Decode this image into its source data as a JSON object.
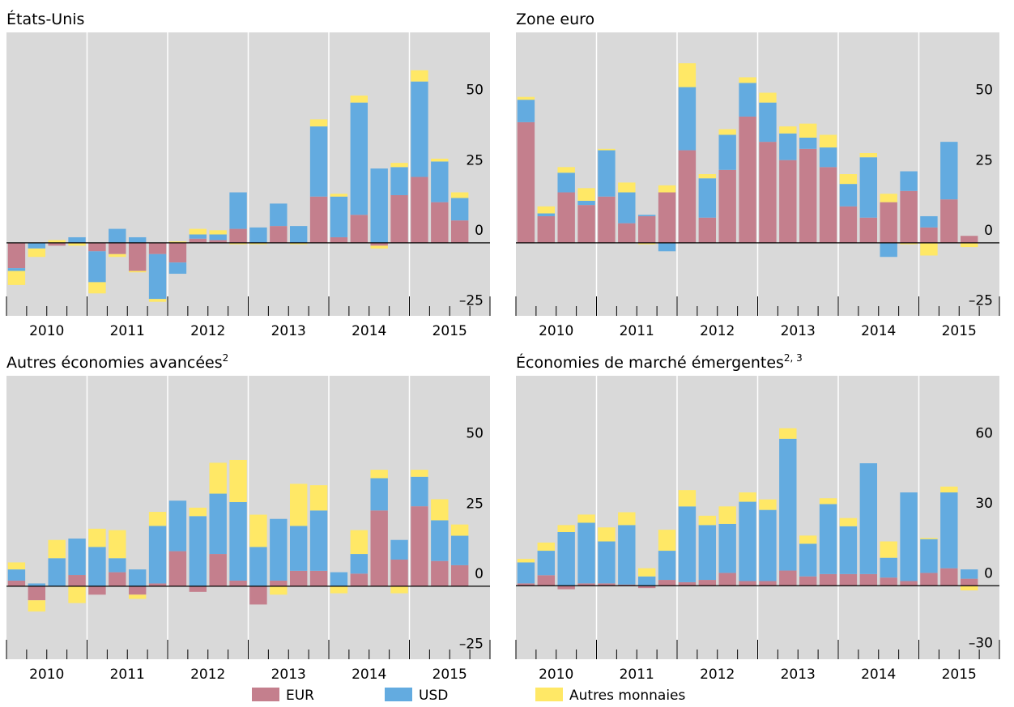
{
  "chart_data": [
    {
      "type": "stacked_bar",
      "title": "États-Unis",
      "ylim": [
        -26,
        75
      ],
      "yticks": [
        {
          "value": -25,
          "label": "–25"
        },
        0,
        25,
        50
      ],
      "year_labels": [
        "2010",
        "2011",
        "2012",
        "2013",
        "2014",
        "2015"
      ],
      "quarters_per_year": 4,
      "series": [
        {
          "name": "EUR",
          "color": "#c47f8d",
          "values": [
            -9,
            0,
            -1,
            0,
            -3,
            -4,
            -10,
            -4,
            -7,
            1.5,
            1,
            5,
            0,
            6,
            0,
            16.5,
            2,
            10,
            -1,
            17,
            23.5,
            14.5,
            8
          ]
        },
        {
          "name": "USD",
          "color": "#63abe0",
          "values": [
            -1,
            -2,
            0,
            2,
            -11,
            5,
            2,
            -16,
            -4,
            1.5,
            2,
            13,
            5.5,
            8,
            6,
            25,
            14.5,
            40,
            26.5,
            10,
            34,
            14.5,
            8
          ]
        },
        {
          "name": "Autres monnaies",
          "color": "#ffe866",
          "values": [
            -5,
            -3,
            1,
            -1,
            -4,
            -1,
            -0.5,
            -1,
            0.5,
            2,
            1.5,
            -0.5,
            -0.5,
            0,
            -0.5,
            2.5,
            1,
            2.5,
            -1,
            1.5,
            4,
            1,
            2
          ]
        }
      ]
    },
    {
      "type": "stacked_bar",
      "title": "Zone euro",
      "ylim": [
        -26,
        75
      ],
      "yticks": [
        {
          "value": -25,
          "label": "–25"
        },
        0,
        25,
        50
      ],
      "year_labels": [
        "2010",
        "2011",
        "2012",
        "2013",
        "2014",
        "2015"
      ],
      "quarters_per_year": 4,
      "series": [
        {
          "name": "EUR",
          "color": "#c47f8d",
          "values": [
            43,
            9.5,
            18,
            13.5,
            16.5,
            7,
            9.5,
            18,
            33,
            9,
            26,
            45,
            36,
            29.5,
            33.5,
            27,
            13,
            9,
            14.5,
            18.5,
            5.5,
            15.5,
            2.5
          ]
        },
        {
          "name": "USD",
          "color": "#63abe0",
          "values": [
            8,
            1,
            7,
            1.5,
            16.5,
            11,
            0.5,
            -3,
            22.5,
            14,
            12.5,
            12,
            14,
            9.5,
            4,
            7,
            8,
            21.5,
            -5,
            7,
            4,
            20.5,
            0
          ]
        },
        {
          "name": "Autres monnaies",
          "color": "#ffe866",
          "values": [
            1,
            2.5,
            2,
            4.5,
            0.5,
            3.5,
            -0.5,
            2.5,
            8.5,
            1.5,
            2,
            2,
            3.5,
            2.5,
            5,
            4.5,
            3.5,
            1.5,
            3,
            -0.5,
            -4.5,
            0,
            -1.5
          ]
        }
      ]
    },
    {
      "type": "stacked_bar",
      "title": "Autres économies avancées",
      "title_superscript": "2",
      "ylim": [
        -26,
        75
      ],
      "yticks": [
        {
          "value": -25,
          "label": "–25"
        },
        0,
        25,
        50
      ],
      "year_labels": [
        "2010",
        "2011",
        "2012",
        "2013",
        "2014",
        "2015"
      ],
      "quarters_per_year": 4,
      "series": [
        {
          "name": "EUR",
          "color": "#c47f8d",
          "values": [
            2,
            -5,
            0,
            4,
            -3,
            5,
            -3,
            1,
            12.5,
            -2,
            11.5,
            2,
            -6.5,
            2,
            5.5,
            5.5,
            0,
            4.5,
            27,
            9.5,
            28.5,
            9,
            7.5
          ]
        },
        {
          "name": "USD",
          "color": "#63abe0",
          "values": [
            4,
            1,
            10,
            13,
            14,
            5,
            6,
            20.5,
            18,
            25,
            21.5,
            28,
            14,
            22,
            16,
            21.5,
            5,
            7,
            11.5,
            7,
            10.5,
            14.5,
            10.5
          ]
        },
        {
          "name": "Autres monnaies",
          "color": "#ffe866",
          "values": [
            2.5,
            -4,
            6.5,
            -6,
            6.5,
            10,
            -1.5,
            5,
            0,
            3,
            11,
            15,
            11.5,
            -3,
            15,
            9,
            -2.5,
            8.5,
            3,
            -2.5,
            2.5,
            7.5,
            4
          ]
        }
      ]
    },
    {
      "type": "stacked_bar",
      "title": "Économies de marché émergentes",
      "title_superscript": "2, 3",
      "ylim": [
        -31.5,
        90
      ],
      "yticks": [
        {
          "value": -30,
          "label": "–30"
        },
        0,
        30,
        60
      ],
      "year_labels": [
        "2010",
        "2011",
        "2012",
        "2013",
        "2014",
        "2015"
      ],
      "quarters_per_year": 4,
      "series": [
        {
          "name": "EUR",
          "color": "#c47f8d",
          "values": [
            1,
            4.5,
            -1.5,
            1,
            1,
            0.5,
            -1,
            2.5,
            1.5,
            2.5,
            5.5,
            2,
            2,
            6.5,
            4,
            5,
            5,
            5,
            3.5,
            2,
            5.5,
            7.5,
            3
          ]
        },
        {
          "name": "USD",
          "color": "#63abe0",
          "values": [
            9,
            10.5,
            23,
            26,
            18,
            25.5,
            4,
            12.5,
            32.5,
            23.5,
            21,
            34,
            30.5,
            56.5,
            14,
            30,
            20.5,
            47.5,
            8.5,
            38,
            14.5,
            32.5,
            4
          ]
        },
        {
          "name": "Autres monnaies",
          "color": "#ffe866",
          "values": [
            1.5,
            3.5,
            3,
            3.5,
            6,
            5.5,
            3.5,
            9,
            7,
            4,
            7.5,
            4,
            4.5,
            4.5,
            3.5,
            2.5,
            3.5,
            0,
            7,
            0,
            0.5,
            2.5,
            -2
          ]
        }
      ]
    }
  ]
}
